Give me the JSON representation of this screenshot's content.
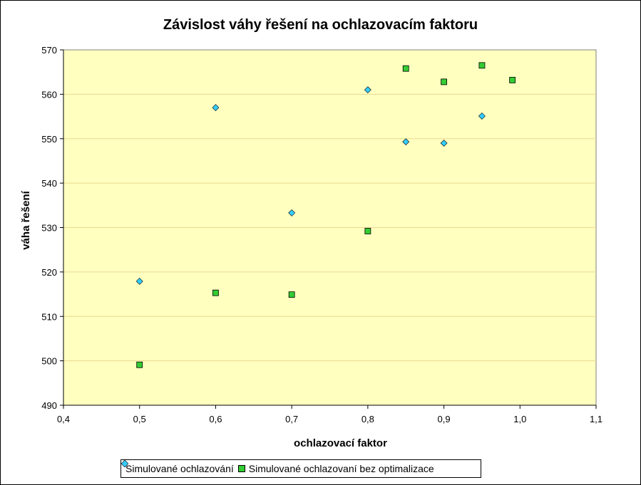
{
  "chart_data": {
    "type": "scatter",
    "title": "Závislost váhy řešení na ochlazovacím faktoru",
    "xlabel": "ochlazovací faktor",
    "ylabel": "váha řešení",
    "xlim": [
      0.4,
      1.1
    ],
    "ylim": [
      490,
      570
    ],
    "x_ticks": [
      "0,4",
      "0,5",
      "0,6",
      "0,7",
      "0,8",
      "0,9",
      "1,0",
      "1,1"
    ],
    "y_ticks": [
      "490",
      "500",
      "510",
      "520",
      "530",
      "540",
      "550",
      "560",
      "570"
    ],
    "grid": "horizontal",
    "legend_position": "bottom",
    "plot_background": "#FFFFC0",
    "series": [
      {
        "name": "Simulované ochlazování",
        "marker": "diamond",
        "color": "#33CCFF",
        "points": [
          {
            "x": 0.5,
            "y": 517.9
          },
          {
            "x": 0.6,
            "y": 557.0
          },
          {
            "x": 0.7,
            "y": 533.3
          },
          {
            "x": 0.8,
            "y": 561.0
          },
          {
            "x": 0.85,
            "y": 549.3
          },
          {
            "x": 0.9,
            "y": 549.0
          },
          {
            "x": 0.95,
            "y": 555.1
          }
        ]
      },
      {
        "name": "Simulované ochlazovaní bez optimalizace",
        "marker": "square",
        "color": "#33CC33",
        "points": [
          {
            "x": 0.5,
            "y": 499.1
          },
          {
            "x": 0.6,
            "y": 515.3
          },
          {
            "x": 0.7,
            "y": 514.9
          },
          {
            "x": 0.8,
            "y": 529.2
          },
          {
            "x": 0.85,
            "y": 565.8
          },
          {
            "x": 0.9,
            "y": 562.8
          },
          {
            "x": 0.95,
            "y": 566.5
          },
          {
            "x": 0.99,
            "y": 563.2
          }
        ]
      }
    ]
  }
}
